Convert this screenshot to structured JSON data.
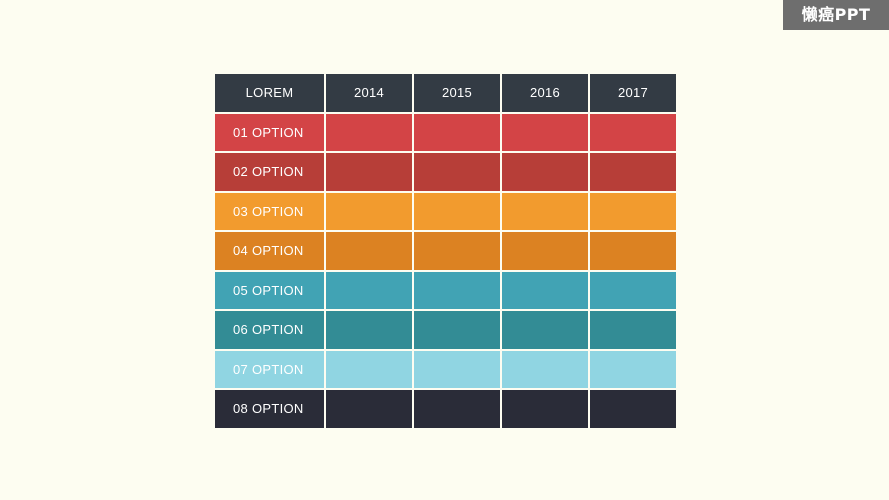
{
  "watermark": {
    "text": "懒癌PPT"
  },
  "table": {
    "header": [
      "LOREM",
      "2014",
      "2015",
      "2016",
      "2017"
    ],
    "rows": [
      {
        "label": "01 OPTION",
        "color": "#d34446"
      },
      {
        "label": "02 OPTION",
        "color": "#b73e38"
      },
      {
        "label": "03 OPTION",
        "color": "#f29b2e"
      },
      {
        "label": "04 OPTION",
        "color": "#dc8222"
      },
      {
        "label": "05 OPTION",
        "color": "#41a3b4"
      },
      {
        "label": "06 OPTION",
        "color": "#338c95"
      },
      {
        "label": "07 OPTION",
        "color": "#90d5e2"
      },
      {
        "label": "08 OPTION",
        "color": "#2a2c38"
      }
    ]
  },
  "colors": {
    "background": "#fdfdf1",
    "header": "#333b44",
    "watermark_bg": "#6e6e6e"
  }
}
